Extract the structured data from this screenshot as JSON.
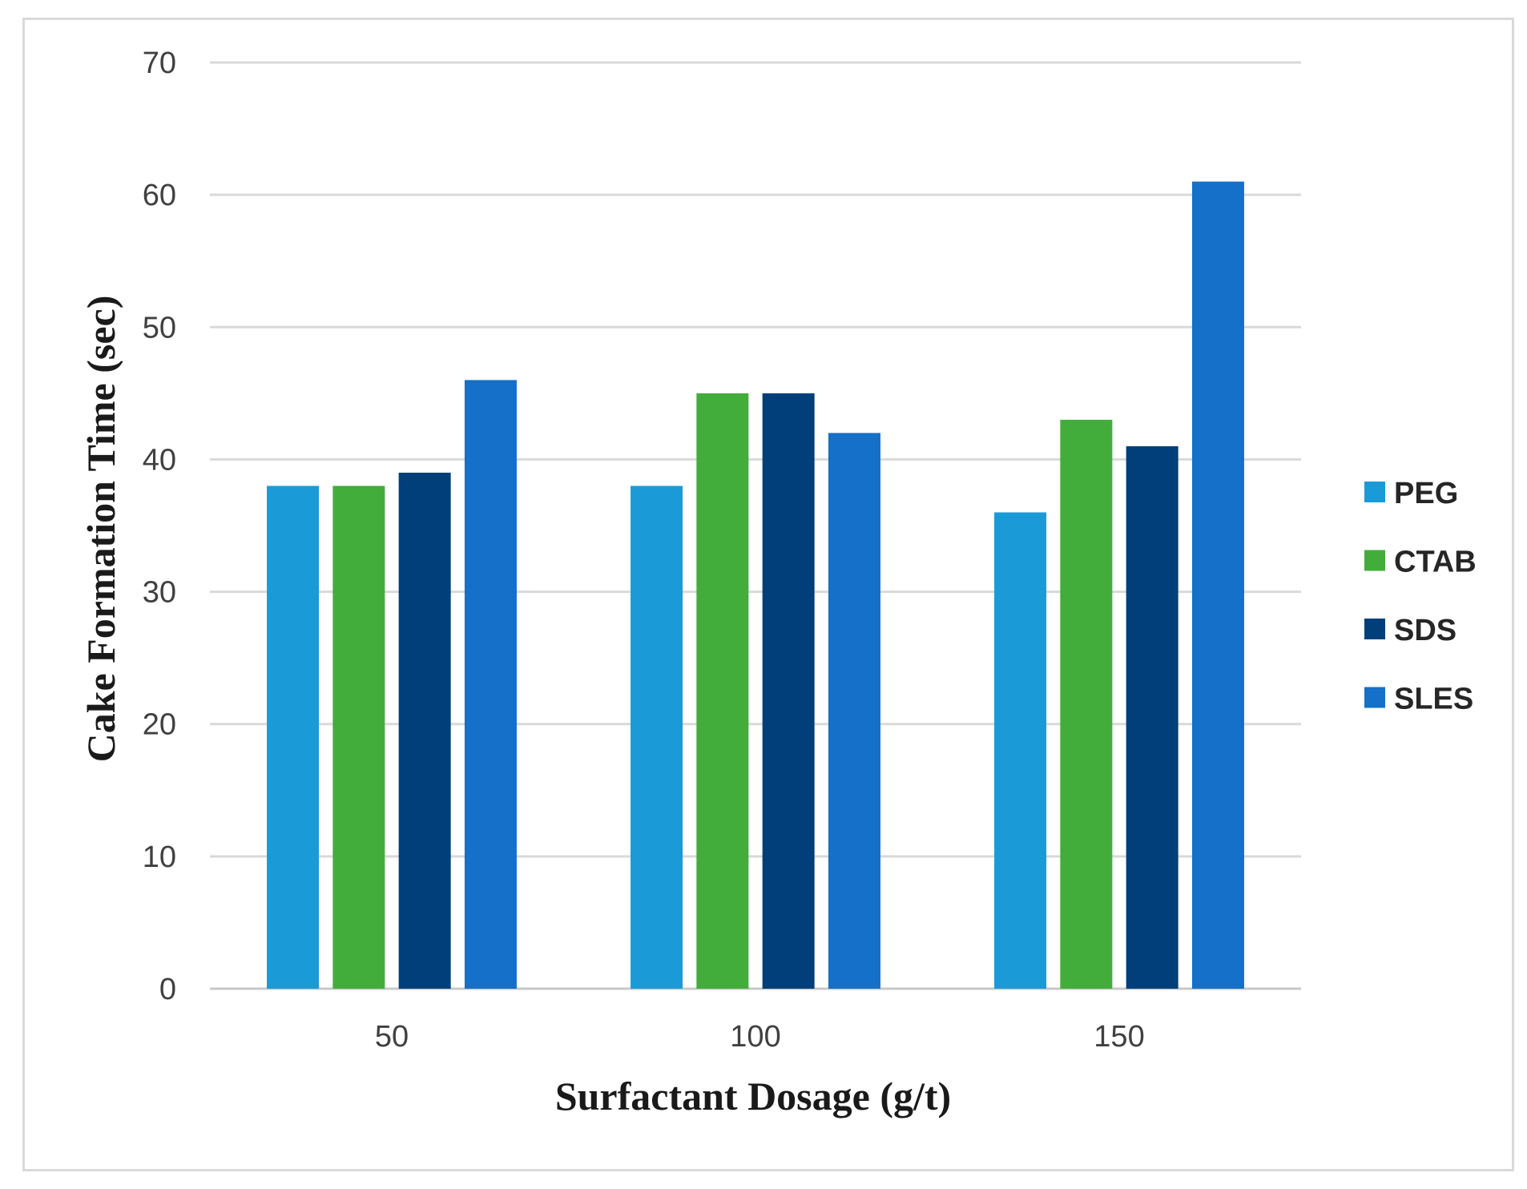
{
  "chart_data": {
    "type": "bar",
    "title": "",
    "xlabel": "Surfactant Dosage (g/t)",
    "ylabel": "Cake Formation Time (sec)",
    "categories": [
      "50",
      "100",
      "150"
    ],
    "ylim": [
      0,
      70
    ],
    "yticks": [
      0,
      10,
      20,
      30,
      40,
      50,
      60,
      70
    ],
    "grid": true,
    "legend_position": "right",
    "series": [
      {
        "name": "PEG",
        "color": "#1a9bd7",
        "values": [
          38,
          38,
          36
        ]
      },
      {
        "name": "CTAB",
        "color": "#43ad3b",
        "values": [
          38,
          45,
          43
        ]
      },
      {
        "name": "SDS",
        "color": "#003f7a",
        "values": [
          39,
          45,
          41
        ]
      },
      {
        "name": "SLES",
        "color": "#1470c8",
        "values": [
          46,
          42,
          61
        ]
      }
    ]
  }
}
